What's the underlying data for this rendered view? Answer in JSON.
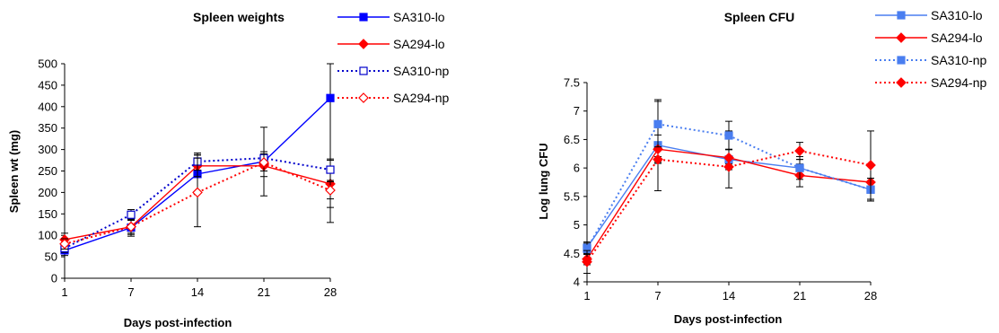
{
  "chart_data": [
    {
      "type": "line",
      "title": "Spleen weights",
      "xlabel": "Days post-infection",
      "ylabel": "Spleen wt (mg)",
      "x": [
        1,
        7,
        14,
        21,
        28
      ],
      "x_tick_labels": [
        "1",
        "7",
        "14",
        "21",
        "28"
      ],
      "y_tick_labels": [
        "0",
        "50",
        "100",
        "150",
        "200",
        "250",
        "300",
        "350",
        "400",
        "450",
        "500"
      ],
      "ylim": [
        0,
        500
      ],
      "grid": false,
      "legend_position": "right",
      "series": [
        {
          "name": "SA310-lo",
          "color": "#0000ff",
          "dash": "solid",
          "marker": "square-filled",
          "values": [
            65,
            118,
            243,
            272,
            420
          ],
          "errors": [
            12,
            20,
            45,
            80,
            290
          ]
        },
        {
          "name": "SA294-lo",
          "color": "#ff0000",
          "dash": "solid",
          "marker": "diamond-filled",
          "values": [
            90,
            120,
            262,
            262,
            220
          ],
          "errors": [
            15,
            18,
            25,
            25,
            55
          ]
        },
        {
          "name": "SA310-np",
          "color": "#0000cc",
          "dash": "dotted",
          "marker": "square-open",
          "values": [
            70,
            148,
            272,
            280,
            253
          ],
          "errors": [
            10,
            12,
            20,
            15,
            25
          ]
        },
        {
          "name": "SA294-np",
          "color": "#ff0000",
          "dash": "dotted",
          "marker": "diamond-open",
          "values": [
            80,
            120,
            200,
            270,
            205
          ],
          "errors": [
            12,
            15,
            80,
            20,
            20
          ]
        }
      ]
    },
    {
      "type": "line",
      "title": "Spleen CFU",
      "xlabel": "Days post-infection",
      "ylabel": "Log lung CFU",
      "x": [
        1,
        7,
        14,
        21,
        28
      ],
      "x_tick_labels": [
        "1",
        "7",
        "14",
        "21",
        "28"
      ],
      "y_tick_labels": [
        "4",
        "4.5",
        "5",
        "5.5",
        "6",
        "6.5",
        "7",
        "7.5"
      ],
      "ylim": [
        4,
        7.5
      ],
      "grid": false,
      "legend_position": "top-right",
      "series": [
        {
          "name": "SA310-lo",
          "color": "#4a7ef0",
          "dash": "solid",
          "marker": "square-filled",
          "values": [
            4.6,
            6.4,
            6.15,
            6.0,
            5.62
          ],
          "errors": [
            0.1,
            0.8,
            0.5,
            0.15,
            0.2
          ]
        },
        {
          "name": "SA294-lo",
          "color": "#ff0000",
          "dash": "solid",
          "marker": "diamond-filled",
          "values": [
            4.4,
            6.33,
            6.18,
            5.87,
            5.75
          ],
          "errors": [
            0.1,
            0.25,
            0.15,
            0.2,
            0.3
          ]
        },
        {
          "name": "SA310-np",
          "color": "#4a7ef0",
          "dash": "dotted",
          "marker": "square-filled",
          "values": [
            4.58,
            6.77,
            6.57,
            6.0,
            5.62
          ],
          "errors": [
            0.1,
            0.4,
            0.25,
            0.2,
            0.2
          ]
        },
        {
          "name": "SA294-np",
          "color": "#ff0000",
          "dash": "dotted",
          "marker": "diamond-filled",
          "values": [
            4.35,
            6.15,
            6.02,
            6.3,
            6.05
          ],
          "errors": [
            0.2,
            0.05,
            0.05,
            0.15,
            0.6
          ]
        }
      ]
    }
  ]
}
